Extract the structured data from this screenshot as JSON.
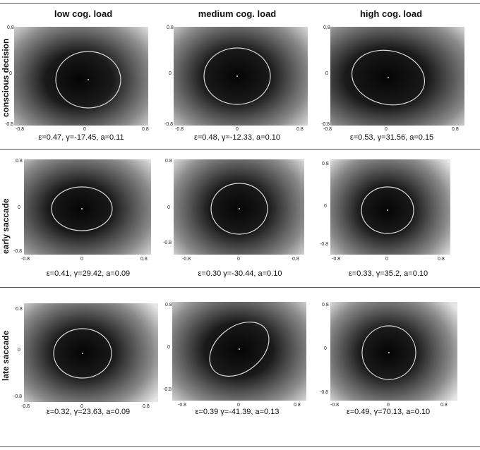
{
  "columns": {
    "c0": "low cog. load",
    "c1": "medium cog. load",
    "c2": "high cog. load"
  },
  "rows": {
    "r0": "conscious decision",
    "r1": "early saccade",
    "r2": "late saccade"
  },
  "ticks": {
    "pos": "0.8",
    "zero": "0",
    "neg": "-0.8"
  },
  "captions": {
    "r0c0": "ε=0.47,  γ=-17.45, a=0.11",
    "r0c1": "ε=0.48,  γ=-12.33, a=0.10",
    "r0c2": "ε=0.53,  γ=31.56, a=0.15",
    "r1c0": "ε=0.41,  γ=29.42, a=0.09",
    "r1c1": "ε=0.30  γ=-30.44, a=0.10",
    "r1c2": "ε=0.33,  γ=35.2, a=0.10",
    "r2c0": "ε=0.32,  γ=23.63, a=0.09",
    "r2c1": "ε=0.39  γ=-41.39, a=0.13",
    "r2c2": "ε=0.49,  γ=70.13, a=0.10"
  },
  "colors": {
    "dark": "#0a0a0a",
    "light": "#ededed",
    "contour": "#d9d9d9"
  }
}
